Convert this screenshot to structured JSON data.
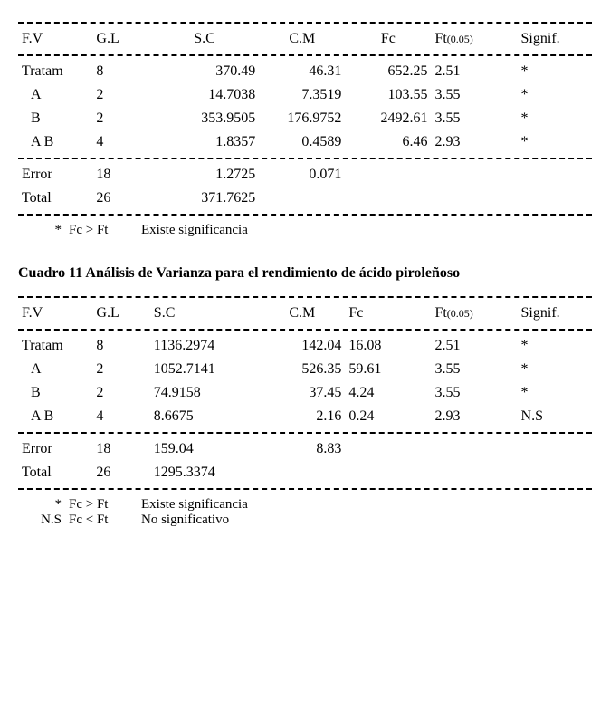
{
  "table1": {
    "header": {
      "fv": "F.V",
      "gl": "G.L",
      "sc": "S.C",
      "cm": "C.M",
      "fc": "Fc",
      "ft_main": "Ft",
      "ft_sub": "(0.05)",
      "sig": "Signif."
    },
    "rows": [
      {
        "fv": "Tratam",
        "gl": "8",
        "sc": "370.49",
        "cm": "46.31",
        "fc": "652.25",
        "ft": "2.51",
        "sig": "*"
      },
      {
        "fv": "A",
        "gl": "2",
        "sc": "14.7038",
        "cm": "7.3519",
        "fc": "103.55",
        "ft": "3.55",
        "sig": "*"
      },
      {
        "fv": "B",
        "gl": "2",
        "sc": "353.9505",
        "cm": "176.9752",
        "fc": "2492.61",
        "ft": "3.55",
        "sig": "*"
      },
      {
        "fv": "A  B",
        "gl": "4",
        "sc": "1.8357",
        "cm": "0.4589",
        "fc": "6.46",
        "ft": "2.93",
        "sig": "*"
      }
    ],
    "footer": [
      {
        "fv": "Error",
        "gl": "18",
        "sc": "1.2725",
        "cm": "0.071"
      },
      {
        "fv": "Total",
        "gl": "26",
        "sc": "371.7625",
        "cm": ""
      }
    ],
    "legend": [
      {
        "sym": "*",
        "cond": "Fc > Ft",
        "text": "Existe significancia"
      }
    ]
  },
  "caption2": "Cuadro 11  Análisis de Varianza para el rendimiento de ácido piroleñoso",
  "table2": {
    "header": {
      "fv": "F.V",
      "gl": "G.L",
      "sc": "S.C",
      "cm": "C.M",
      "fc": "Fc",
      "ft_main": "Ft",
      "ft_sub": "(0.05)",
      "sig": "Signif."
    },
    "rows": [
      {
        "fv": "Tratam",
        "gl": "8",
        "sc": "1136.2974",
        "cm": "142.04",
        "fc": "16.08",
        "ft": "2.51",
        "sig": "*"
      },
      {
        "fv": "A",
        "gl": "2",
        "sc": "1052.7141",
        "cm": "526.35",
        "fc": "59.61",
        "ft": "3.55",
        "sig": "*"
      },
      {
        "fv": "B",
        "gl": "2",
        "sc": "74.9158",
        "cm": "37.45",
        "fc": "4.24",
        "ft": "3.55",
        "sig": "*"
      },
      {
        "fv": "A  B",
        "gl": "4",
        "sc": "8.6675",
        "cm": "2.16",
        "fc": "0.24",
        "ft": "2.93",
        "sig": "N.S"
      }
    ],
    "footer": [
      {
        "fv": "Error",
        "gl": "18",
        "sc": "159.04",
        "cm": "8.83"
      },
      {
        "fv": "Total",
        "gl": "26",
        "sc": "1295.3374",
        "cm": ""
      }
    ],
    "legend": [
      {
        "sym": "*",
        "cond": "Fc > Ft",
        "text": "Existe significancia"
      },
      {
        "sym": "N.S",
        "cond": "Fc < Ft",
        "text": "No significativo"
      }
    ]
  }
}
